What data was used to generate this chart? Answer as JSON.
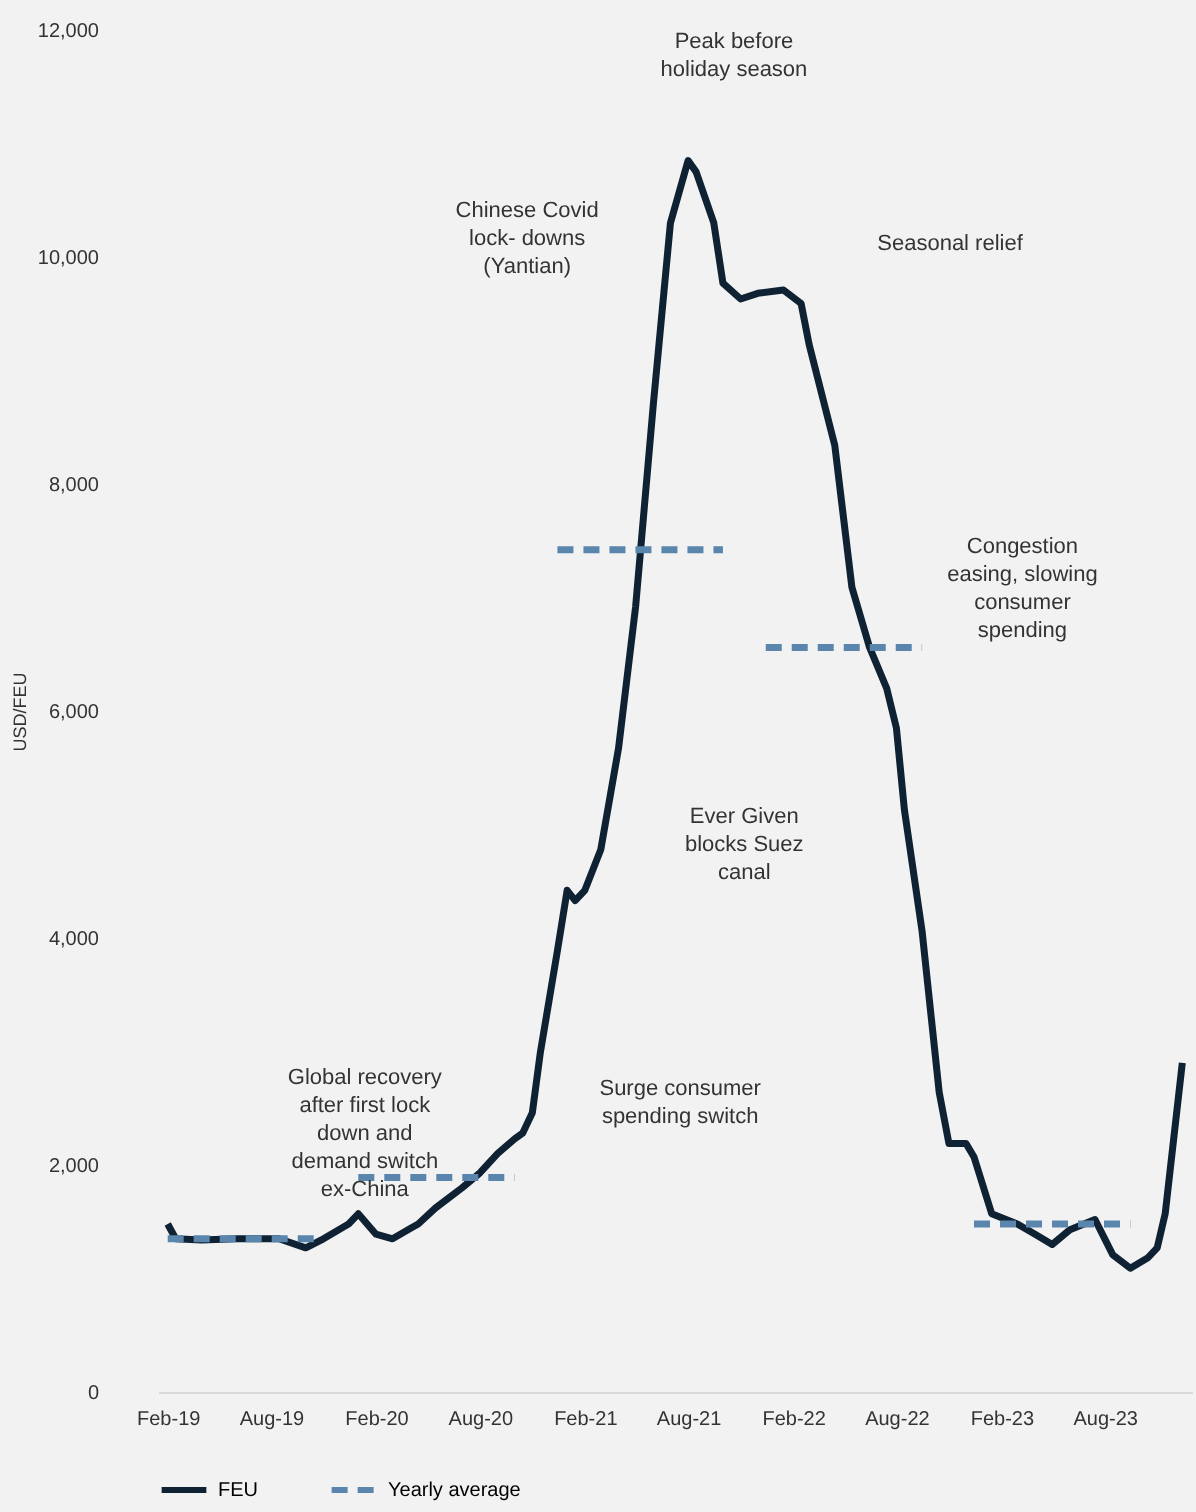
{
  "chart_data": {
    "type": "line",
    "ylabel": "USD/FEU",
    "xlim": [
      "2019-01-15",
      "2024-01-01"
    ],
    "xticks": [
      {
        "value": "2019-02-01",
        "label": "Feb-19"
      },
      {
        "value": "2019-08-01",
        "label": "Aug-19"
      },
      {
        "value": "2020-02-01",
        "label": "Feb-20"
      },
      {
        "value": "2020-08-01",
        "label": "Aug-20"
      },
      {
        "value": "2021-02-01",
        "label": "Feb-21"
      },
      {
        "value": "2021-08-01",
        "label": "Aug-21"
      },
      {
        "value": "2022-02-01",
        "label": "Feb-22"
      },
      {
        "value": "2022-08-01",
        "label": "Aug-22"
      },
      {
        "value": "2023-02-01",
        "label": "Feb-23"
      },
      {
        "value": "2023-08-01",
        "label": "Aug-23"
      }
    ],
    "ylim": [
      0,
      12000
    ],
    "yticks": [
      0,
      {
        "value": 2000,
        "label": "2,000"
      },
      {
        "value": 4000,
        "label": "4,000"
      },
      {
        "value": 6000,
        "label": "6,000"
      },
      {
        "value": 8000,
        "label": "8,000"
      },
      {
        "value": 10000,
        "label": "10,000"
      },
      {
        "value": 12000,
        "label": "12,000"
      }
    ],
    "grid": false,
    "legend": "bottom",
    "marker": "none",
    "series": [
      {
        "name": "FEU",
        "color": "#0f2233",
        "line_style": "solid",
        "x": [
          "2019-02-01",
          "2019-02-15",
          "2019-04-01",
          "2019-06-01",
          "2019-08-15",
          "2019-10-01",
          "2019-11-01",
          "2019-12-15",
          "2020-01-01",
          "2020-02-01",
          "2020-03-01",
          "2020-04-01",
          "2020-04-15",
          "2020-05-15",
          "2020-07-01",
          "2020-08-01",
          "2020-09-01",
          "2020-10-01",
          "2020-10-15",
          "2020-11-01",
          "2020-11-15",
          "2020-12-15",
          "2021-01-01",
          "2021-01-15",
          "2021-02-01",
          "2021-03-01",
          "2021-04-01",
          "2021-05-01",
          "2021-06-01",
          "2021-07-01",
          "2021-08-01",
          "2021-08-15",
          "2021-09-15",
          "2021-10-01",
          "2021-11-01",
          "2021-12-01",
          "2022-01-15",
          "2022-02-15",
          "2022-03-01",
          "2022-04-15",
          "2022-05-15",
          "2022-06-15",
          "2022-07-15",
          "2022-08-01",
          "2022-08-15",
          "2022-09-15",
          "2022-10-15",
          "2022-11-01",
          "2022-12-01",
          "2022-12-15",
          "2023-01-15",
          "2023-03-01",
          "2023-04-01",
          "2023-05-01",
          "2023-06-01",
          "2023-07-15",
          "2023-08-15",
          "2023-09-15",
          "2023-10-15",
          "2023-11-01",
          "2023-11-15",
          "2023-12-15"
        ],
        "values": [
          1480,
          1350,
          1340,
          1350,
          1350,
          1270,
          1350,
          1480,
          1570,
          1390,
          1350,
          1440,
          1480,
          1620,
          1800,
          1930,
          2100,
          2230,
          2280,
          2460,
          2990,
          3890,
          4420,
          4330,
          4420,
          4780,
          5670,
          6920,
          8700,
          10300,
          10850,
          10750,
          10300,
          9770,
          9630,
          9680,
          9710,
          9590,
          9230,
          8340,
          7090,
          6560,
          6200,
          5850,
          5130,
          4060,
          2640,
          2190,
          2190,
          2070,
          1570,
          1480,
          1390,
          1300,
          1430,
          1520,
          1210,
          1090,
          1180,
          1270,
          1570,
          2900
        ]
      },
      {
        "name": "Yearly average",
        "color": "#5a86ae",
        "line_style": "dashed",
        "x": [
          "2019-02-01",
          "2019-11-01",
          "2019-12-01",
          "2020-01-01",
          "2020-10-01",
          "2020-11-15",
          "2020-12-15",
          "2021-10-01",
          "2021-11-15",
          "2021-12-15",
          "2022-09-15",
          "2022-11-01",
          "2022-12-15",
          "2023-09-15"
        ],
        "values": [
          1350,
          1350,
          null,
          1890,
          1890,
          null,
          7420,
          7420,
          null,
          6560,
          6560,
          null,
          1480,
          1480
        ]
      }
    ],
    "annotations": [
      "Peak before\nholiday season",
      "Chinese Covid\nlock- downs\n(Yantian)",
      "Seasonal relief",
      "Congestion\neasing, slowing\nconsumer\nspending",
      "Ever Given\nblocks Suez\ncanal",
      "Surge consumer\nspending switch",
      "Global recovery\nafter first lock\ndown and\ndemand switch\nex-China"
    ]
  }
}
